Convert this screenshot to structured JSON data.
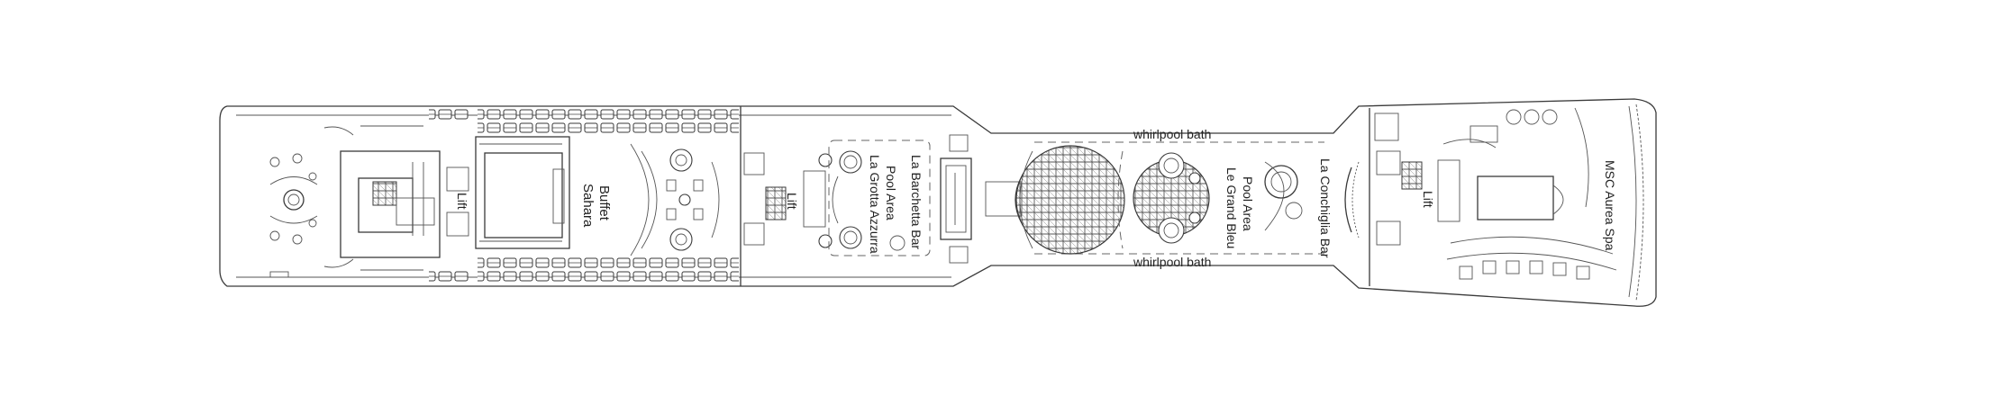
{
  "labels": {
    "lift_1": "Lift",
    "lift_2": "Lift",
    "lift_3": "Lift",
    "sahara_line1": "Sahara",
    "sahara_line2": "Buffet",
    "barchetta": "La Barchetta Bar",
    "grotta_line1": "La Grotta Azzurra",
    "grotta_line2": "Pool Area",
    "whirlpool_top": "whirlpool bath",
    "whirlpool_bottom": "whirlpool bath",
    "grandbleu_line1": "Le Grand Bleu",
    "grandbleu_line2": "Pool Area",
    "conchiglia": "La Conchiglia Bar",
    "aurea_spa": "MSC Aurea Spa"
  },
  "colors": {
    "line": "#3a3a3a",
    "background": "#ffffff"
  },
  "icons": {
    "pool_grid": "crosshatch-pool-icon",
    "round_table": "round-table-icon",
    "lounger": "sun-lounger-icon",
    "stairs": "staircase-icon"
  }
}
